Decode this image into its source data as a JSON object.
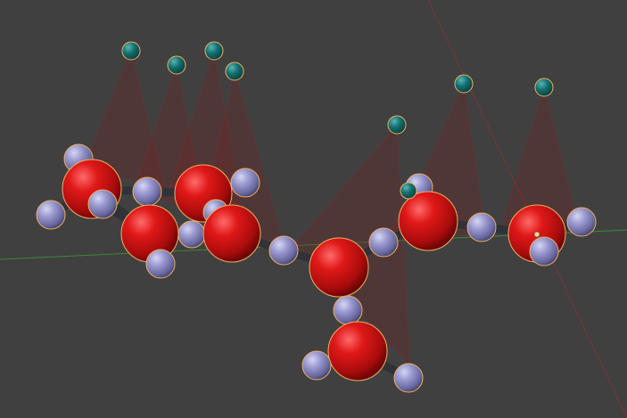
{
  "viewport": {
    "name": "3d-molecule-viewport",
    "background_color": "#404040",
    "colors": {
      "red_atom": "#d41616",
      "blue_atom": "#8a8ac6",
      "teal_marker": "#0f6e72",
      "bond": "#33363c",
      "selection_outline": "#f0b060",
      "x_axis": "#8a3a3a",
      "y_axis": "#3c8a3c",
      "cone_fill": "#7a2020"
    },
    "atoms_red": 8,
    "atoms_blue": 17,
    "markers_teal": 8
  }
}
